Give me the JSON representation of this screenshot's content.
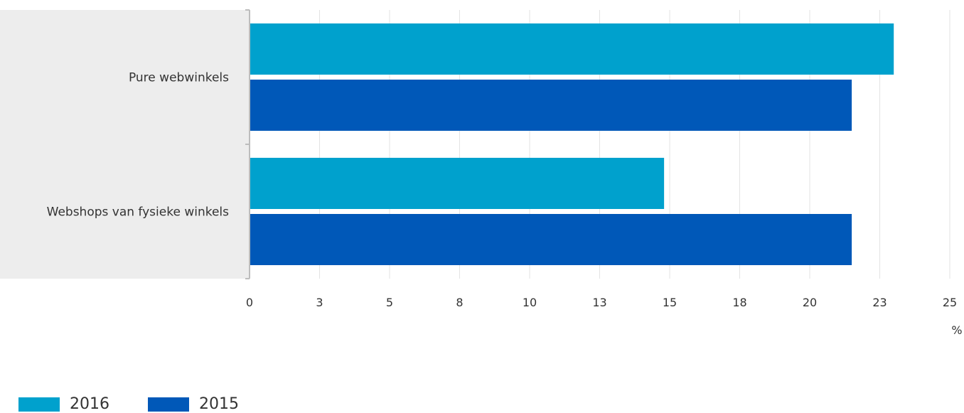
{
  "chart_data": {
    "type": "bar",
    "orientation": "horizontal",
    "categories": [
      "Pure webwinkels",
      "Webshops van fysieke winkels"
    ],
    "series": [
      {
        "name": "2016",
        "values": [
          23.0,
          14.8
        ],
        "color": "#00A1CD"
      },
      {
        "name": "2015",
        "values": [
          21.5,
          21.5
        ],
        "color": "#0058B8"
      }
    ],
    "x_ticks": [
      0,
      2.5,
      5,
      7.5,
      10,
      12.5,
      15,
      17.5,
      20,
      22.5,
      25
    ],
    "x_tick_labels": [
      "0",
      "3",
      "5",
      "8",
      "10",
      "13",
      "15",
      "18",
      "20",
      "23",
      "25"
    ],
    "xlim": [
      0,
      25
    ],
    "unit": "%",
    "grid": true,
    "legend_position": "bottom-left"
  }
}
